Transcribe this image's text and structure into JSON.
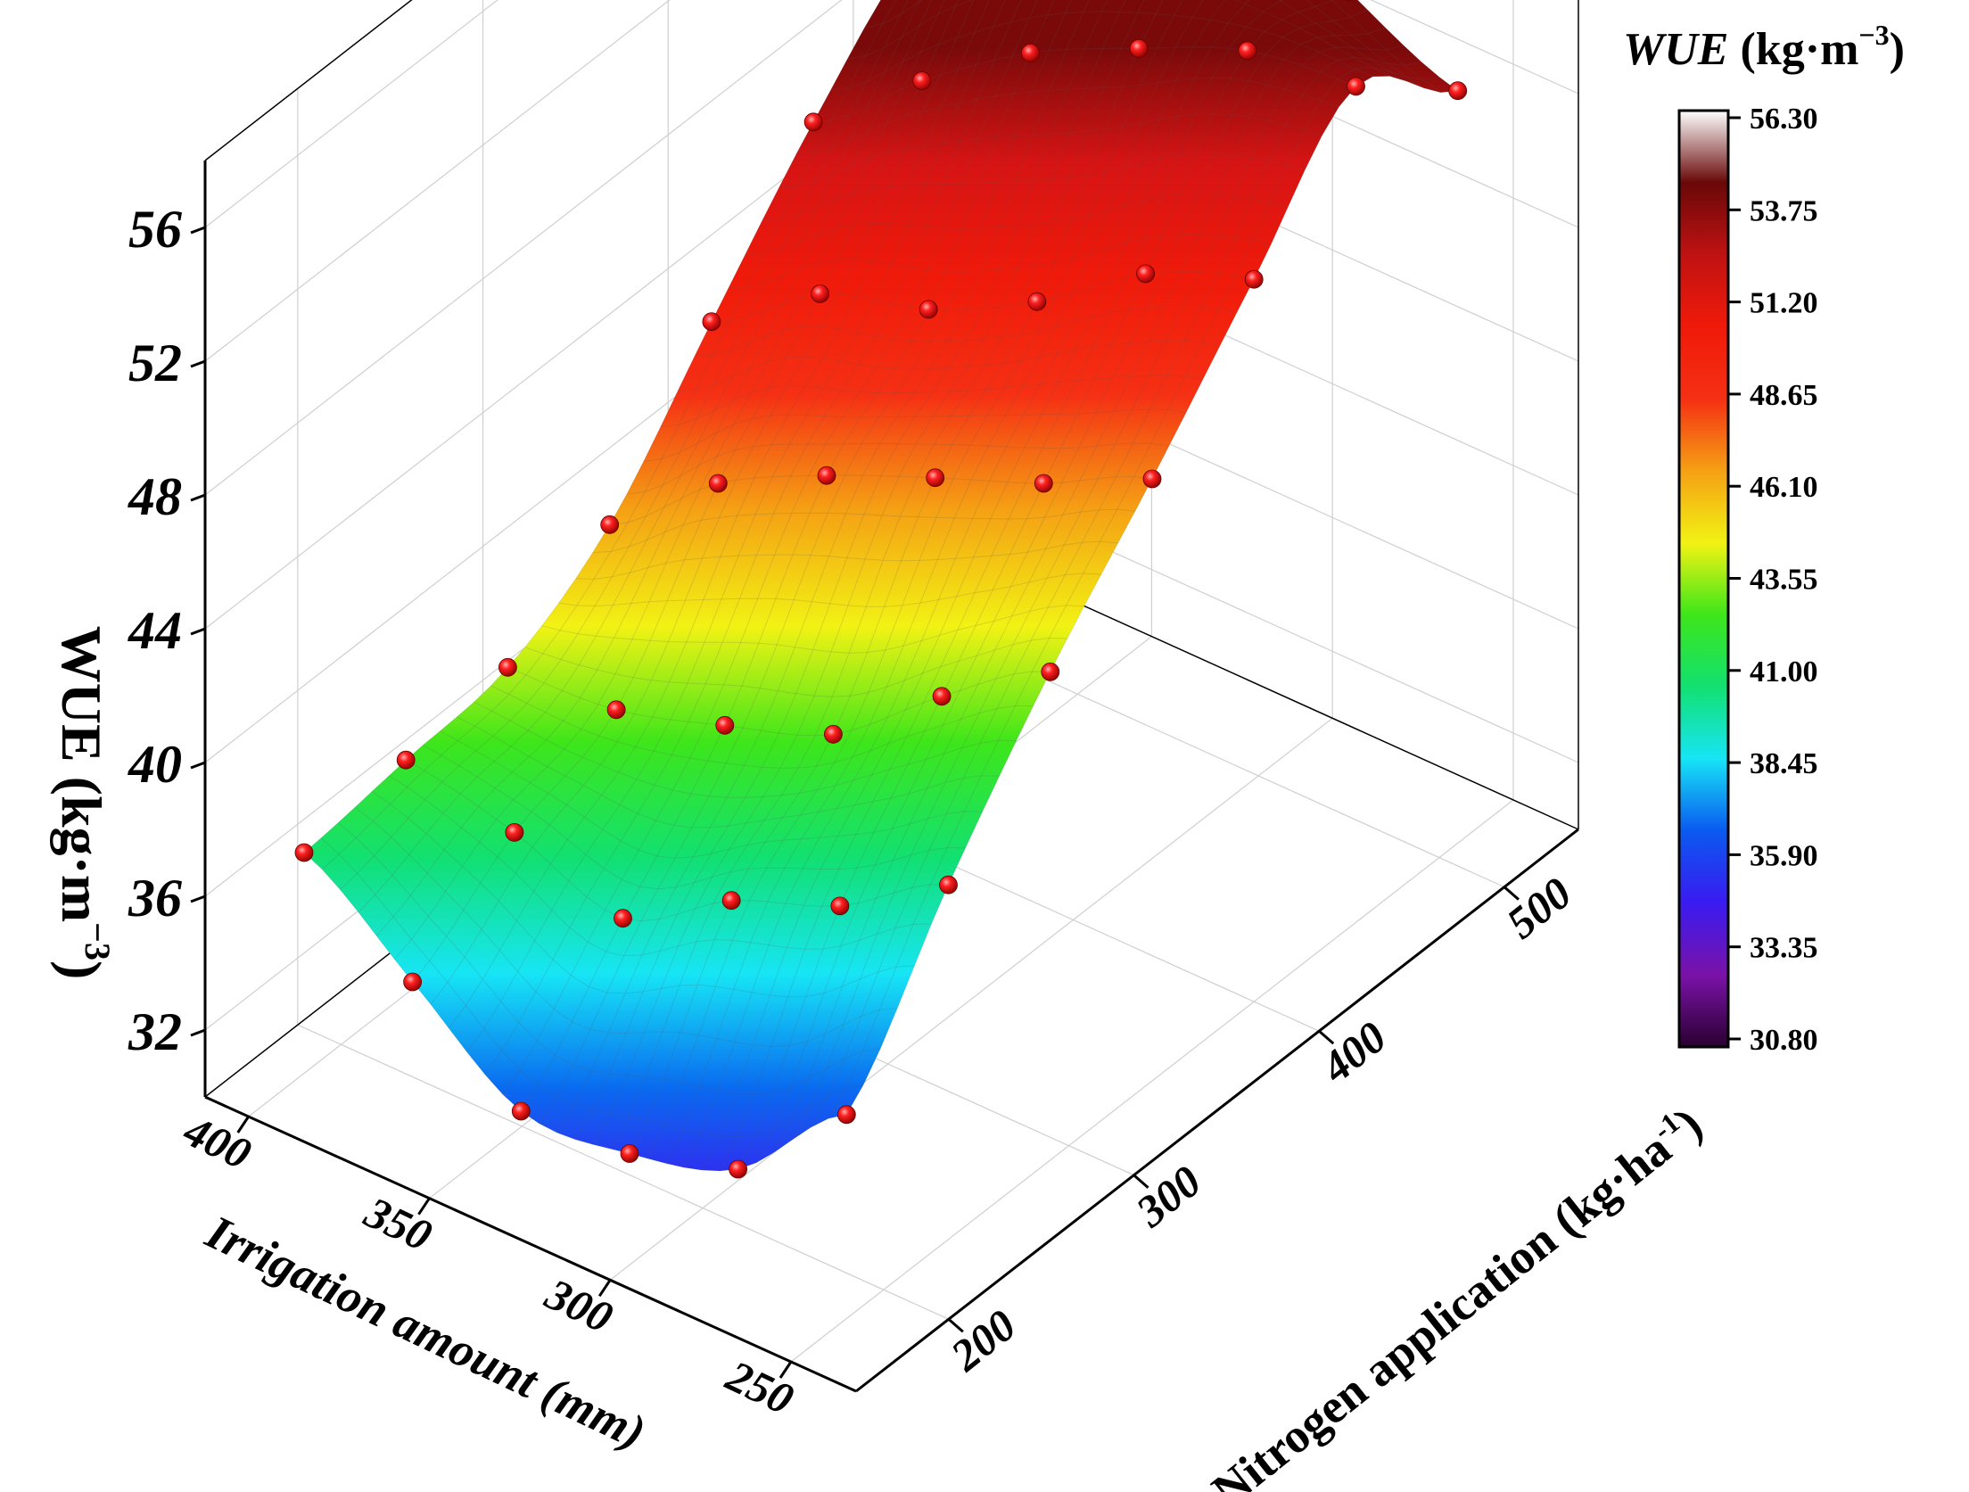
{
  "chart_data": {
    "type": "surface3d",
    "zlabel_parts": [
      "WUE (kg·m",
      "−3",
      ")"
    ],
    "xlabel": "Irrigation amount (mm)",
    "ylabel_parts": [
      "Nitrogen application (kg·ha",
      "-1",
      ")"
    ],
    "z_ticks": [
      "32",
      "36",
      "40",
      "44",
      "48",
      "52",
      "56"
    ],
    "x_ticks": [
      "400",
      "350",
      "300",
      "250"
    ],
    "y_ticks": [
      "200",
      "300",
      "400",
      "500"
    ],
    "colorbar": {
      "title_italic": "WUE",
      "title_rest": " (kg·m",
      "title_sup": "−3",
      "title_end": ")",
      "ticks": [
        "56.30",
        "53.75",
        "51.20",
        "48.65",
        "46.10",
        "43.55",
        "41.00",
        "38.45",
        "35.90",
        "33.35",
        "30.80"
      ],
      "min": 30.8,
      "max": 56.3,
      "colors": [
        "#2a0030",
        "#7a12a8",
        "#3a1bf0",
        "#0a5af0",
        "#17e5f5",
        "#12e070",
        "#3ee61a",
        "#f2f214",
        "#f5a114",
        "#f53014",
        "#f01a0a",
        "#c01212",
        "#6a0808",
        "#ffffff"
      ]
    },
    "x_range": [
      232,
      412
    ],
    "y_range": [
      150,
      540
    ],
    "z_range": [
      30,
      58
    ],
    "grid": true,
    "rows_y": [
      180,
      235,
      290,
      345,
      400,
      455,
      510
    ],
    "cols_x": [
      400,
      370,
      340,
      310,
      280,
      250
    ],
    "points": [
      [
        36.6,
        34.2,
        31.8,
        32.0,
        33.0,
        36.1
      ],
      [
        37.0,
        36.3,
        35.2,
        37.2,
        38.5,
        40.6
      ],
      [
        37.4,
        37.6,
        38.6,
        39.8,
        42.4,
        44.6
      ],
      [
        39.3,
        42.0,
        43.7,
        45.1,
        46.4,
        48.0
      ],
      [
        43.0,
        45.3,
        46.3,
        48.0,
        50.3,
        51.6
      ],
      [
        46.6,
        49.3,
        51.6,
        53.2,
        54.6,
        55.0
      ],
      [
        49.4,
        53.2,
        55.2,
        56.0,
        54.0,
        52.5
      ]
    ]
  }
}
